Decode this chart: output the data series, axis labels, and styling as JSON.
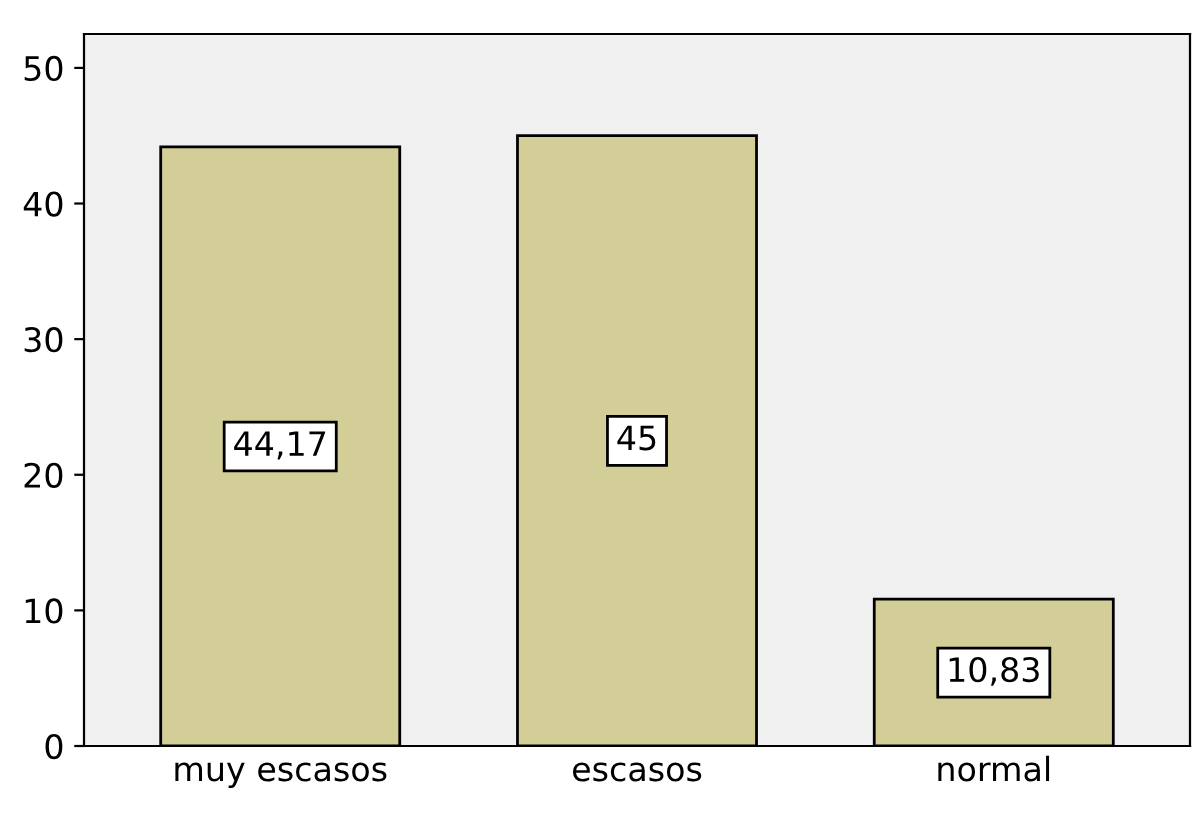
{
  "chart_data": {
    "type": "bar",
    "categories": [
      "muy escasos",
      "escasos",
      "normal"
    ],
    "values": [
      44.17,
      45,
      10.83
    ],
    "value_labels": [
      "44,17",
      "45",
      "10,83"
    ],
    "color": "#d3ce97",
    "ylim": [
      0,
      52.5
    ],
    "yticks": [
      0,
      10,
      20,
      30,
      40,
      50
    ],
    "grid": false,
    "legend": false
  }
}
